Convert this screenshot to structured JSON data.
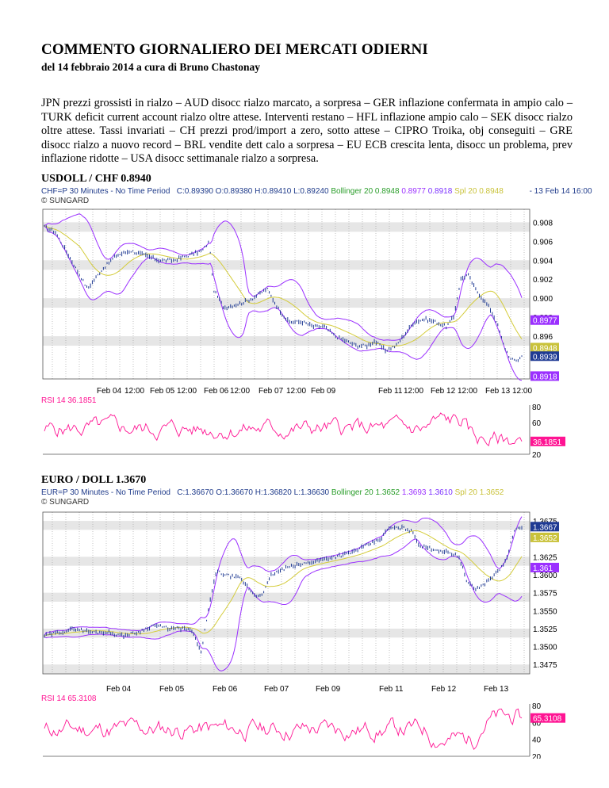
{
  "header": {
    "title": "COMMENTO GIORNALIERO DEI MERCATI ODIERNI",
    "subtitle": "del 14 febbraio 2014 a cura di Bruno Chastonay"
  },
  "summary": "JPN prezzi grossisti in rialzo – AUD disocc rialzo marcato, a sorpresa – GER inflazione confermata in ampio calo – TURK deficit current account rialzo oltre attese. Interventi restano – HFL inflazione ampio calo – SEK disocc rialzo oltre attese. Tassi invariati – CH prezzi prod/import a zero, sotto attese – CIPRO Troika, obj conseguiti – GRE disocc rialzo a nuovo record – BRL vendite dett calo a sorpresa – EU ECB crescita lenta, disocc un problema, prev inflazione ridotte – USA disocc settimanale rialzo a sorpresa.",
  "chart_data": [
    {
      "type": "line",
      "title": "USDOLL / CHF 0.8940",
      "header": {
        "symbol": "CHF=P 30 Minutes -  No Time Period",
        "ohlc": "C:0.89390 O:0.89380 H:0.89410 L:0.89240",
        "bollinger": "Bollinger 20 0.8948",
        "upper": "0.8977",
        "lower": "0.8918",
        "spline": "Spl 20 0.8948",
        "date": "-  13 Feb 14 16:00",
        "source": "© SUNGARD"
      },
      "ylim": [
        0.8915,
        0.9092
      ],
      "yticks": [
        "0.908",
        "0.906",
        "0.904",
        "0.902",
        "0.900",
        "0.898",
        "0.896",
        "0.894"
      ],
      "xticks": [
        "Feb 04",
        "12:00",
        "Feb 05",
        "12:00",
        "Feb 06",
        "12:00",
        "Feb 07",
        "12:00",
        "Feb 09",
        "Feb 11",
        "12:00",
        "Feb 12",
        "12:00",
        "Feb 13",
        "12:00"
      ],
      "price_keypoints": [
        [
          0,
          0.9075
        ],
        [
          3,
          0.907
        ],
        [
          6,
          0.905
        ],
        [
          9,
          0.903
        ],
        [
          12,
          0.901
        ],
        [
          16,
          0.903
        ],
        [
          20,
          0.9045
        ],
        [
          24,
          0.905
        ],
        [
          28,
          0.9045
        ],
        [
          32,
          0.904
        ],
        [
          36,
          0.904
        ],
        [
          40,
          0.9045
        ],
        [
          44,
          0.905
        ],
        [
          46,
          0.906
        ],
        [
          47,
          0.901
        ],
        [
          50,
          0.899
        ],
        [
          55,
          0.8995
        ],
        [
          58,
          0.9
        ],
        [
          62,
          0.901
        ],
        [
          65,
          0.899
        ],
        [
          68,
          0.8975
        ],
        [
          72,
          0.8975
        ],
        [
          75,
          0.897
        ],
        [
          78,
          0.897
        ],
        [
          81,
          0.896
        ],
        [
          84,
          0.8955
        ],
        [
          87,
          0.895
        ],
        [
          90,
          0.895
        ],
        [
          92,
          0.8955
        ],
        [
          95,
          0.8945
        ],
        [
          98,
          0.895
        ],
        [
          100,
          0.896
        ],
        [
          103,
          0.8975
        ],
        [
          106,
          0.8978
        ],
        [
          109,
          0.8975
        ],
        [
          112,
          0.897
        ],
        [
          114,
          0.898
        ],
        [
          116,
          0.902
        ],
        [
          118,
          0.9025
        ],
        [
          120,
          0.901
        ],
        [
          122,
          0.9
        ],
        [
          124,
          0.899
        ],
        [
          126,
          0.8975
        ],
        [
          128,
          0.895
        ],
        [
          130,
          0.8935
        ],
        [
          132,
          0.8935
        ],
        [
          133,
          0.8939
        ]
      ],
      "labels": {
        "last": "0.8939",
        "bollinger_mid": "0.8948",
        "bollinger_upper": "0.8977",
        "bollinger_lower": "0.8918"
      },
      "rsi": {
        "label": "RSI 14  36.1851",
        "value": "36.1851",
        "ylim": [
          20,
          80
        ],
        "yticks": [
          "80",
          "60",
          "20"
        ]
      },
      "colors": {
        "price": "#1f3a93",
        "upper_band": "#9b30ff",
        "lower_band": "#9b30ff",
        "spline": "#d4cc3a",
        "rsi": "#ff1493",
        "last_tag": "#1f3a93",
        "upper_tag": "#9b30ff",
        "mid_tag": "#c9c23a"
      }
    },
    {
      "type": "line",
      "title": "EURO / DOLL 1.3670",
      "header": {
        "symbol": "EUR=P 30 Minutes -  No Time Period",
        "ohlc": "C:1.36670 O:1.36670 H:1.36820 L:1.36630",
        "bollinger": "Bollinger 20 1.3652",
        "upper": "1.3693",
        "lower": "1.3610",
        "spline": "Spl 20 1.3652",
        "source": "© SUNGARD"
      },
      "ylim": [
        1.3462,
        1.3685
      ],
      "yticks": [
        "1.3675",
        "1.3650",
        "1.3625",
        "1.3600",
        "1.3575",
        "1.3550",
        "1.3525",
        "1.3500",
        "1.3475"
      ],
      "xticks": [
        "Feb 04",
        "Feb 05",
        "Feb 06",
        "Feb 07",
        "Feb 09",
        "Feb 11",
        "Feb 12",
        "Feb 13"
      ],
      "price_keypoints": [
        [
          0,
          1.3515
        ],
        [
          4,
          1.352
        ],
        [
          8,
          1.3525
        ],
        [
          12,
          1.352
        ],
        [
          16,
          1.352
        ],
        [
          20,
          1.3515
        ],
        [
          24,
          1.352
        ],
        [
          28,
          1.353
        ],
        [
          32,
          1.3525
        ],
        [
          36,
          1.3525
        ],
        [
          38,
          1.352
        ],
        [
          40,
          1.349
        ],
        [
          42,
          1.3555
        ],
        [
          44,
          1.3605
        ],
        [
          46,
          1.36
        ],
        [
          50,
          1.3595
        ],
        [
          54,
          1.357
        ],
        [
          56,
          1.3575
        ],
        [
          58,
          1.36
        ],
        [
          62,
          1.361
        ],
        [
          66,
          1.3615
        ],
        [
          70,
          1.362
        ],
        [
          74,
          1.3625
        ],
        [
          78,
          1.363
        ],
        [
          82,
          1.364
        ],
        [
          86,
          1.365
        ],
        [
          88,
          1.3665
        ],
        [
          92,
          1.3665
        ],
        [
          94,
          1.366
        ],
        [
          96,
          1.364
        ],
        [
          100,
          1.3635
        ],
        [
          104,
          1.363
        ],
        [
          106,
          1.3625
        ],
        [
          108,
          1.359
        ],
        [
          110,
          1.358
        ],
        [
          112,
          1.3585
        ],
        [
          114,
          1.3595
        ],
        [
          116,
          1.3605
        ],
        [
          118,
          1.362
        ],
        [
          120,
          1.366
        ],
        [
          122,
          1.3667
        ]
      ],
      "labels": {
        "last": "1.3667",
        "bollinger_mid": "1.3652",
        "bollinger_lower": "1.361"
      },
      "rsi": {
        "label": "RSI 14  65.3108",
        "value": "65.3108",
        "ylim": [
          20,
          80
        ],
        "yticks": [
          "80",
          "60",
          "40",
          "20"
        ]
      },
      "colors": {
        "price": "#1f3a93",
        "upper_band": "#9b30ff",
        "lower_band": "#9b30ff",
        "spline": "#d4cc3a",
        "rsi": "#ff1493",
        "last_tag": "#1f3a93",
        "upper_tag": "#9b30ff",
        "mid_tag": "#c9c23a"
      }
    }
  ]
}
